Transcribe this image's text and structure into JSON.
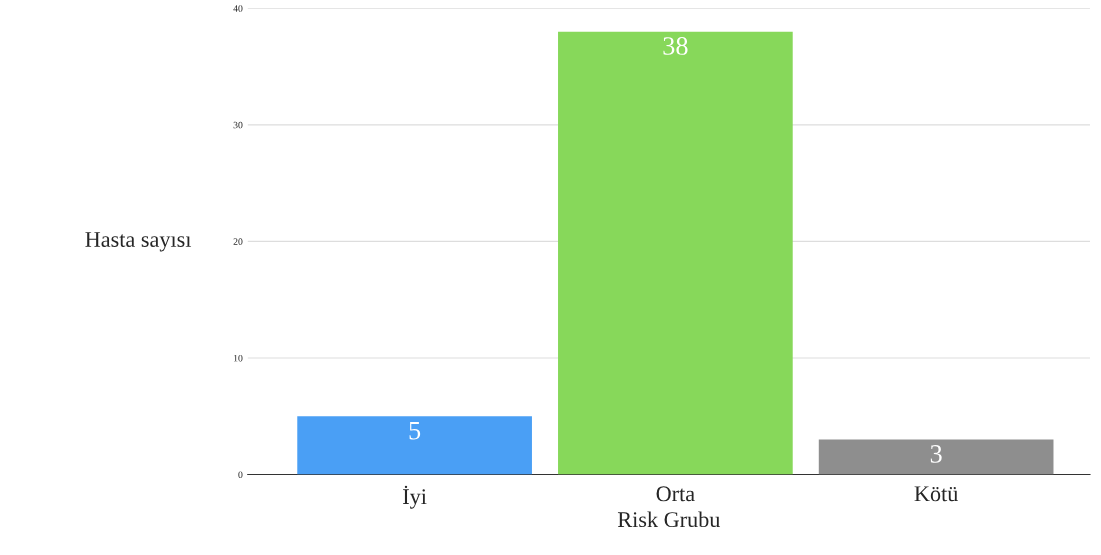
{
  "chart_data": {
    "type": "bar",
    "xlabel": "Risk Grubu",
    "ylabel": "Hasta sayısı",
    "categories": [
      "İyi",
      "Orta",
      "Kötü"
    ],
    "values": [
      5,
      38,
      3
    ],
    "colors": [
      "#4a9ff5",
      "#87d85a",
      "#8e8e8e"
    ],
    "ylim": [
      0,
      40
    ],
    "yticks": [
      0,
      10,
      20,
      30,
      40
    ],
    "grid": "y",
    "data_labels": true
  }
}
